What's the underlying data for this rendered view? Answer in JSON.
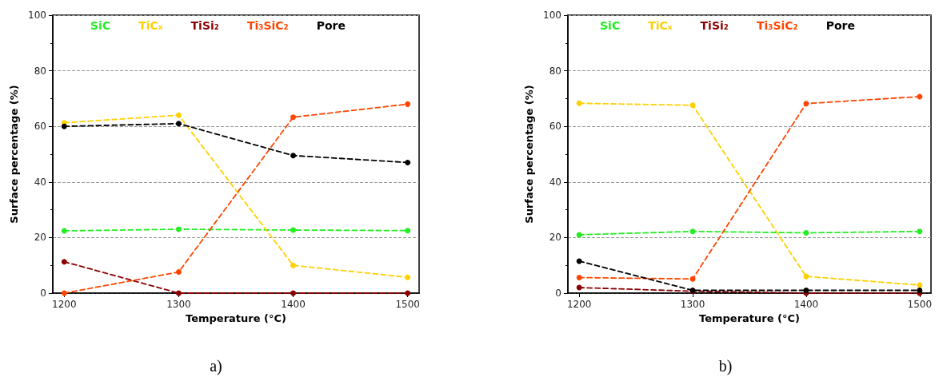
{
  "chart_data": [
    {
      "type": "line",
      "xlabel": "Temperature (°C)",
      "ylabel": "Surface percentage (%)",
      "annotations": [
        "a)"
      ],
      "x": [
        1200,
        1300,
        1400,
        1500
      ],
      "xlim": [
        1190,
        1510
      ],
      "xticks": [
        1200,
        1300,
        1400,
        1500
      ],
      "ylim": [
        0,
        100
      ],
      "yticks": [
        0,
        20,
        40,
        60,
        80,
        100
      ],
      "grid": "y",
      "legend": "top",
      "marker": "circle",
      "line_style": "dashed",
      "series": [
        {
          "name": "SiC",
          "color": "#22ee22",
          "values": [
            22.4,
            23,
            22.7,
            22.5
          ]
        },
        {
          "name": "TiCₓ",
          "color": "#ffd000",
          "values": [
            61.3,
            64,
            10,
            5.7
          ]
        },
        {
          "name": "TiSi₂",
          "color": "#8b0000",
          "values": [
            11.3,
            0,
            0,
            0
          ]
        },
        {
          "name": "Ti₃SiC₂",
          "color": "#ff4500",
          "values": [
            0,
            7.6,
            63.3,
            68
          ]
        },
        {
          "name": "Pore",
          "color": "#000000",
          "values": [
            60,
            61,
            49.5,
            47
          ]
        }
      ]
    },
    {
      "type": "line",
      "xlabel": "Temperature (°C)",
      "ylabel": "Surface percentage (%)",
      "annotations": [
        "b)"
      ],
      "x": [
        1200,
        1300,
        1400,
        1500
      ],
      "xlim": [
        1190,
        1510
      ],
      "xticks": [
        1200,
        1300,
        1400,
        1500
      ],
      "ylim": [
        0,
        100
      ],
      "yticks": [
        0,
        20,
        40,
        60,
        80,
        100
      ],
      "grid": "y",
      "legend": "top",
      "marker": "circle",
      "line_style": "dashed",
      "series": [
        {
          "name": "SiC",
          "color": "#22ee22",
          "values": [
            21,
            22.2,
            21.7,
            22.2
          ]
        },
        {
          "name": "TiCₓ",
          "color": "#ffd000",
          "values": [
            68.3,
            67.6,
            6,
            2.9
          ]
        },
        {
          "name": "TiSi₂",
          "color": "#8b0000",
          "values": [
            2,
            0.7,
            0,
            0
          ]
        },
        {
          "name": "Ti₃SiC₂",
          "color": "#ff4500",
          "values": [
            5.6,
            5.1,
            68.2,
            70.7
          ]
        },
        {
          "name": "Pore",
          "color": "#000000",
          "values": [
            11.5,
            1,
            1,
            1
          ]
        }
      ]
    }
  ]
}
